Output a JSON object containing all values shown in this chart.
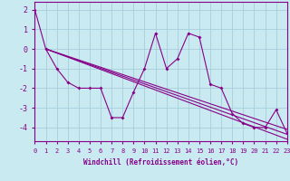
{
  "xlabel": "Windchill (Refroidissement éolien,°C)",
  "background_color": "#c8eaf0",
  "line_color": "#880088",
  "grid_color": "#a0c8d8",
  "x_ticks": [
    0,
    1,
    2,
    3,
    4,
    5,
    6,
    7,
    8,
    9,
    10,
    11,
    12,
    13,
    14,
    15,
    16,
    17,
    18,
    19,
    20,
    21,
    22,
    23
  ],
  "y_ticks": [
    -4,
    -3,
    -2,
    -1,
    0,
    1,
    2
  ],
  "ylim": [
    -4.7,
    2.4
  ],
  "xlim": [
    0,
    23
  ],
  "series1_x": [
    0,
    1,
    2,
    3,
    4,
    5,
    6,
    7,
    8,
    9,
    10,
    11,
    12,
    13,
    14,
    15,
    16,
    17,
    18,
    19,
    20,
    21,
    22,
    23
  ],
  "series1_y": [
    2.0,
    0.0,
    -1.0,
    -1.7,
    -2.0,
    -2.0,
    -2.0,
    -3.5,
    -3.5,
    -2.2,
    -1.0,
    0.8,
    -1.0,
    -0.5,
    0.8,
    0.6,
    -1.8,
    -2.0,
    -3.3,
    -3.8,
    -4.0,
    -4.0,
    -3.1,
    -4.3
  ],
  "trend1_x": [
    1,
    23
  ],
  "trend1_y": [
    0.0,
    -4.1
  ],
  "trend2_x": [
    1,
    23
  ],
  "trend2_y": [
    0.0,
    -4.35
  ],
  "trend3_x": [
    1,
    23
  ],
  "trend3_y": [
    0.0,
    -4.6
  ],
  "spine_color": "#880088",
  "tick_fontsize": 5,
  "xlabel_fontsize": 5.5
}
